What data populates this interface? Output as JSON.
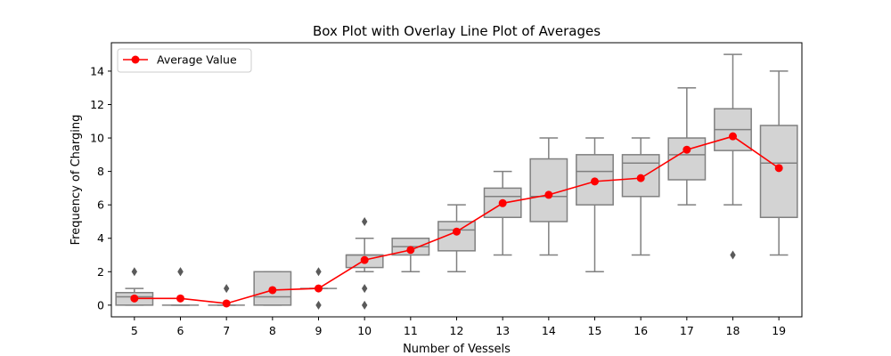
{
  "chart_data": {
    "type": "box",
    "title": "Box Plot with Overlay Line Plot of Averages",
    "xlabel": "Number of Vessels",
    "ylabel": "Frequency of Charging",
    "categories": [
      "5",
      "6",
      "7",
      "8",
      "9",
      "10",
      "11",
      "12",
      "13",
      "14",
      "15",
      "16",
      "17",
      "18",
      "19"
    ],
    "ylim": [
      -0.7,
      15.7
    ],
    "yticks": [
      0,
      2,
      4,
      6,
      8,
      10,
      12,
      14
    ],
    "grid": false,
    "legend": {
      "placement": "top-left",
      "entries": [
        "Average Value"
      ]
    },
    "colors": {
      "box_fill": "#d3d3d3",
      "box_edge": "#808080",
      "line": "#ff0000"
    },
    "boxes": [
      {
        "category": "5",
        "q1": 0,
        "median": 0.5,
        "q3": 0.75,
        "whisker_low": 0,
        "whisker_high": 1,
        "outliers": [
          2
        ]
      },
      {
        "category": "6",
        "q1": 0,
        "median": 0,
        "q3": 0,
        "whisker_low": 0,
        "whisker_high": 0,
        "outliers": [
          2,
          2
        ]
      },
      {
        "category": "7",
        "q1": 0,
        "median": 0,
        "q3": 0,
        "whisker_low": 0,
        "whisker_high": 0,
        "outliers": [
          1
        ]
      },
      {
        "category": "8",
        "q1": 0,
        "median": 0.5,
        "q3": 2,
        "whisker_low": 0,
        "whisker_high": 2,
        "outliers": []
      },
      {
        "category": "9",
        "q1": 1,
        "median": 1,
        "q3": 1,
        "whisker_low": 1,
        "whisker_high": 1,
        "outliers": [
          2,
          0
        ]
      },
      {
        "category": "10",
        "q1": 2.25,
        "median": 3,
        "q3": 3,
        "whisker_low": 2,
        "whisker_high": 4,
        "outliers": [
          5,
          1,
          0
        ]
      },
      {
        "category": "11",
        "q1": 3,
        "median": 3.5,
        "q3": 4,
        "whisker_low": 2,
        "whisker_high": 4,
        "outliers": []
      },
      {
        "category": "12",
        "q1": 3.25,
        "median": 4.5,
        "q3": 5,
        "whisker_low": 2,
        "whisker_high": 6,
        "outliers": []
      },
      {
        "category": "13",
        "q1": 5.25,
        "median": 6.5,
        "q3": 7,
        "whisker_low": 3,
        "whisker_high": 8,
        "outliers": []
      },
      {
        "category": "14",
        "q1": 5,
        "median": 6.5,
        "q3": 8.75,
        "whisker_low": 3,
        "whisker_high": 10,
        "outliers": []
      },
      {
        "category": "15",
        "q1": 6,
        "median": 8,
        "q3": 9,
        "whisker_low": 2,
        "whisker_high": 10,
        "outliers": []
      },
      {
        "category": "16",
        "q1": 6.5,
        "median": 8.5,
        "q3": 9,
        "whisker_low": 3,
        "whisker_high": 10,
        "outliers": []
      },
      {
        "category": "17",
        "q1": 7.5,
        "median": 9,
        "q3": 10,
        "whisker_low": 6,
        "whisker_high": 13,
        "outliers": []
      },
      {
        "category": "18",
        "q1": 9.25,
        "median": 10.5,
        "q3": 11.75,
        "whisker_low": 6,
        "whisker_high": 15,
        "outliers": [
          3
        ]
      },
      {
        "category": "19",
        "q1": 5.25,
        "median": 8.5,
        "q3": 10.75,
        "whisker_low": 3,
        "whisker_high": 14,
        "outliers": []
      }
    ],
    "series": [
      {
        "name": "Average Value",
        "type": "line",
        "values": [
          0.4,
          0.4,
          0.1,
          0.9,
          1.0,
          2.7,
          3.3,
          4.4,
          6.1,
          6.6,
          7.4,
          7.6,
          9.3,
          10.1,
          8.2
        ]
      }
    ]
  }
}
